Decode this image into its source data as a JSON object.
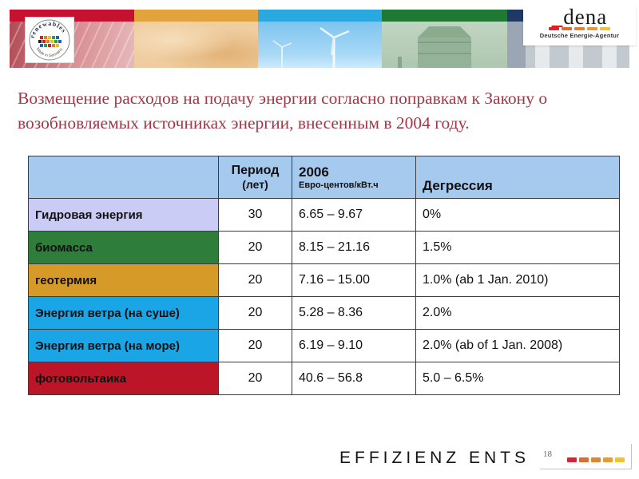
{
  "slide": {
    "title": "Возмещение расходов на подачу энергии согласно поправкам к Закону о возобновляемых источниках энергии, внесенным в 2004 году.",
    "footer_text": "EFFIZIENZ ENTS",
    "page_number": "18"
  },
  "banner": {
    "renewables_logo": {
      "arc_top": "renewables",
      "arc_bottom": "Made in Germany"
    },
    "dena_logo": {
      "underscore": "_",
      "wordmark": "dena",
      "subtitle": "Deutsche Energie-Agentur"
    }
  },
  "table": {
    "header": {
      "period_title": "Период",
      "period_sub": "(лет)",
      "year": "2006",
      "year_unit": "Евро-центов/кВт.ч",
      "degression": "Дегрессия"
    },
    "rows": [
      {
        "label": "Гидровая энергия",
        "period": "30",
        "tariff": "6.65 – 9.67",
        "degression": "0%",
        "color": "#cbccf6"
      },
      {
        "label": "биомасса",
        "period": "20",
        "tariff": "8.15 – 21.16",
        "degression": "1.5%",
        "color": "#2e7d3b"
      },
      {
        "label": "геотермия",
        "period": "20",
        "tariff": "7.16 – 15.00",
        "degression": "1.0% (ab 1 Jan. 2010)",
        "color": "#d69a28"
      },
      {
        "label": "Энергия ветра (на суше)",
        "period": "20",
        "tariff": "5.28 – 8.36",
        "degression": "2.0%",
        "color": "#19a5e6"
      },
      {
        "label": "Энергия ветра (на море)",
        "period": "20",
        "tariff": "6.19 – 9.10",
        "degression": "2.0% (ab of 1 Jan. 2008)",
        "color": "#19a5e6"
      },
      {
        "label": "фотовольтаика",
        "period": "20",
        "tariff": "40.6 – 56.8",
        "degression": "5.0 – 6.5%",
        "color": "#bd1528"
      }
    ]
  },
  "colors": {
    "title_red": "#a03848",
    "header_blue": "#a6c9ee",
    "banner_red": "#c41230",
    "banner_orange": "#e2a23c",
    "banner_blue": "#2aa9e0",
    "banner_green": "#1e7a33",
    "banner_navy": "#203864",
    "dash_colors": [
      "#e0202e",
      "#e06a32",
      "#e5822f",
      "#eb9a33",
      "#f2c12e"
    ]
  }
}
